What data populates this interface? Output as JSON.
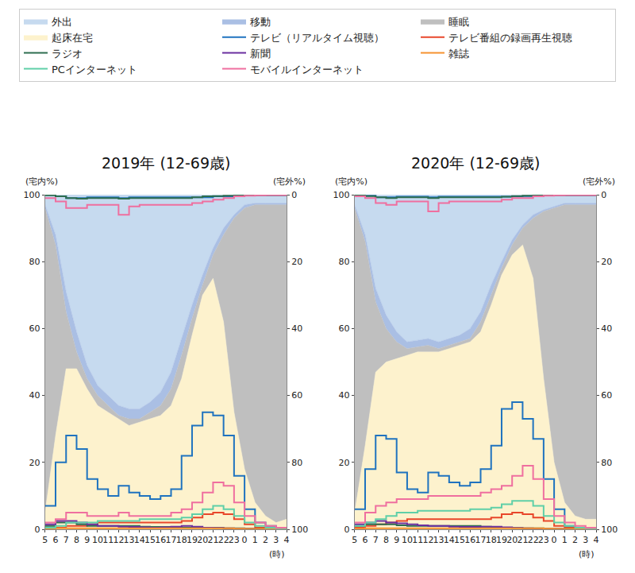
{
  "chart_data": [
    {
      "type": "area",
      "title": "2019年 (12-69歳)",
      "y_label": "(宅内%)",
      "y2_label": "(宅外%)",
      "x_label": "(時)",
      "stacked": true,
      "grid": false,
      "legend": "top",
      "categories": [
        "5",
        "6",
        "7",
        "8",
        "9",
        "10",
        "11",
        "12",
        "13",
        "14",
        "15",
        "16",
        "17",
        "18",
        "19",
        "20",
        "21",
        "22",
        "23",
        "0",
        "1",
        "2",
        "3",
        "4"
      ],
      "ylim": [
        0,
        100
      ],
      "yticks": [
        0,
        20,
        40,
        60,
        80,
        100
      ],
      "y2lim": [
        100,
        0
      ],
      "y2ticks": [
        0,
        20,
        40,
        60,
        80,
        100
      ],
      "series": [
        {
          "name": "外出",
          "type": "area",
          "color": "#c6daef",
          "values": [
            3,
            12,
            29,
            41,
            51,
            57,
            60,
            63,
            64,
            64,
            62,
            59,
            53,
            43,
            33,
            24,
            16,
            10,
            6,
            3,
            2.5,
            2.5,
            2.5,
            2.5
          ]
        },
        {
          "name": "移動",
          "type": "area",
          "color": "#aabfe4",
          "values": [
            1,
            3,
            6,
            6,
            4,
            3,
            3,
            3,
            3,
            3,
            3,
            4,
            5,
            5,
            4,
            3,
            2,
            2,
            1,
            1,
            0.5,
            0.5,
            0.5,
            0.5
          ]
        },
        {
          "name": "睡眠",
          "type": "area",
          "color": "#bfbfbf",
          "values": [
            91,
            57,
            17,
            5,
            3,
            3,
            2,
            1,
            2,
            1,
            2,
            3,
            5,
            7,
            5,
            3,
            7,
            26,
            58,
            78,
            89,
            93,
            95,
            94
          ]
        },
        {
          "name": "起床在宅",
          "type": "area",
          "color": "#fdf2cd",
          "values": [
            5,
            28,
            48,
            48,
            42,
            37,
            35,
            33,
            31,
            32,
            33,
            34,
            37,
            45,
            58,
            70,
            75,
            62,
            35,
            18,
            8,
            4,
            2,
            3
          ]
        },
        {
          "name": "テレビ（リアルタイム視聴）",
          "type": "line",
          "line_style": "step",
          "color": "#1f73bf",
          "values": [
            7,
            20,
            28,
            24,
            15,
            12,
            10,
            13,
            11,
            10,
            9,
            10,
            12,
            22,
            31,
            35,
            34,
            28,
            16,
            6,
            2,
            1,
            0.5,
            0.5
          ]
        },
        {
          "name": "テレビ番組の録画再生視聴",
          "type": "line",
          "line_style": "step",
          "color": "#e8472b",
          "values": [
            0.3,
            0.5,
            1,
            1,
            1.5,
            2,
            2,
            2,
            2,
            2,
            2,
            2,
            2,
            2.5,
            3.5,
            4.5,
            5,
            4.5,
            3,
            1.5,
            0.5,
            0.3,
            0.2,
            0.2
          ]
        },
        {
          "name": "ラジオ",
          "type": "line",
          "line_style": "step",
          "color": "#2e6e50",
          "values": [
            1,
            2,
            2,
            1.5,
            1,
            1,
            1,
            1,
            1,
            0.8,
            0.7,
            0.7,
            0.7,
            0.5,
            0.5,
            0.5,
            0.5,
            0.3,
            0.3,
            0.2,
            0.1,
            0.1,
            0.1,
            0.1
          ]
        },
        {
          "name": "新聞",
          "type": "line",
          "line_style": "step",
          "color": "#6a2fa0",
          "values": [
            1.5,
            2.5,
            2.5,
            2,
            1.5,
            1,
            1,
            0.8,
            0.7,
            0.6,
            0.5,
            0.6,
            0.8,
            1,
            0.8,
            0.5,
            0.4,
            0.3,
            0.2,
            0.1,
            0,
            0,
            0,
            0
          ]
        },
        {
          "name": "雑誌",
          "type": "line",
          "line_style": "step",
          "color": "#f5922f",
          "values": [
            0.2,
            0.3,
            0.3,
            0.3,
            0.3,
            0.3,
            0.3,
            0.3,
            0.3,
            0.3,
            0.3,
            0.3,
            0.3,
            0.3,
            0.3,
            0.3,
            0.3,
            0.3,
            0.2,
            0.1,
            0.1,
            0.1,
            0.1,
            0.1
          ]
        },
        {
          "name": "PCインターネット",
          "type": "line",
          "line_style": "step",
          "color": "#5fcfa8",
          "values": [
            0.5,
            1,
            2,
            2,
            2,
            2.5,
            2.5,
            2.5,
            2.5,
            3,
            3,
            3,
            3,
            3.5,
            4.5,
            6,
            7,
            6,
            4,
            2,
            1,
            0.5,
            0.3,
            0.2
          ]
        },
        {
          "name": "モバイルインターネット",
          "type": "line",
          "line_style": "step",
          "color": "#ef6f9f",
          "values": [
            2,
            3,
            5,
            5,
            4,
            4,
            4,
            5,
            4,
            4,
            4,
            4,
            5,
            6,
            8,
            11,
            14,
            13,
            8,
            4,
            2,
            1,
            0.5,
            0.5
          ]
        },
        {
          "name": "テレビ（リアルタイム視聴）",
          "type": "line",
          "line_style": "step",
          "axis": "y2",
          "color": "#1f73bf",
          "values": [
            0,
            0.5,
            1,
            1,
            0.8,
            0.8,
            0.8,
            1,
            0.8,
            0.8,
            0.8,
            0.8,
            0.8,
            0.8,
            0.8,
            0.8,
            0.5,
            0.5,
            0.3,
            0.2,
            0.1,
            0.1,
            0.1,
            0.1
          ]
        },
        {
          "name": "ラジオ",
          "type": "line",
          "line_style": "step",
          "axis": "y2",
          "color": "#2e6e50",
          "values": [
            0.2,
            0.5,
            1,
            1.2,
            1,
            1,
            1,
            1.2,
            1,
            1,
            1,
            1,
            1,
            1,
            0.8,
            0.5,
            0.4,
            0.3,
            0.2,
            0.1,
            0.1,
            0.1,
            0.1,
            0.1
          ]
        },
        {
          "name": "モバイルインターネット",
          "type": "line",
          "line_style": "step",
          "axis": "y2",
          "color": "#ef6f9f",
          "values": [
            1,
            2,
            4,
            4,
            3,
            3,
            3,
            6,
            3.5,
            3,
            3,
            3,
            3,
            3,
            2.5,
            2,
            1.5,
            1,
            0.5,
            0.3,
            0.2,
            0.1,
            0.1,
            0.1
          ]
        }
      ]
    },
    {
      "type": "area",
      "title": "2020年 (12-69歳)",
      "y_label": "(宅内%)",
      "y2_label": "(宅外%)",
      "x_label": "(時)",
      "stacked": true,
      "grid": false,
      "legend": "top",
      "categories": [
        "5",
        "6",
        "7",
        "8",
        "9",
        "10",
        "11",
        "12",
        "13",
        "14",
        "15",
        "16",
        "17",
        "18",
        "19",
        "20",
        "21",
        "22",
        "23",
        "0",
        "1",
        "2",
        "3",
        "4"
      ],
      "ylim": [
        0,
        100
      ],
      "yticks": [
        0,
        20,
        40,
        60,
        80,
        100
      ],
      "y2lim": [
        100,
        0
      ],
      "y2ticks": [
        0,
        20,
        40,
        60,
        80,
        100
      ],
      "series": [
        {
          "name": "外出",
          "type": "area",
          "color": "#c6daef",
          "values": [
            3,
            12,
            28,
            36,
            41,
            44,
            43.5,
            43,
            44,
            43,
            42,
            40,
            35,
            27,
            20,
            13.5,
            9,
            6,
            4.5,
            3.5,
            2.5,
            2.5,
            2.5,
            2.5
          ]
        },
        {
          "name": "移動",
          "type": "area",
          "color": "#aabfe4",
          "values": [
            1,
            2,
            4,
            4,
            3,
            2,
            2,
            2,
            2,
            2,
            2,
            3,
            3,
            3,
            2,
            1.5,
            1,
            1,
            0.5,
            0.5,
            0.5,
            0.5,
            0.5,
            0.5
          ]
        },
        {
          "name": "睡眠",
          "type": "area",
          "color": "#bfbfbf",
          "values": [
            91,
            61,
            21,
            10,
            5,
            2,
            1.5,
            2,
            1,
            1,
            1,
            1,
            3,
            3,
            2,
            3,
            5,
            18,
            50,
            76,
            89,
            93,
            94,
            94
          ]
        },
        {
          "name": "起床在宅",
          "type": "area",
          "color": "#fdf2cd",
          "values": [
            5,
            25,
            47,
            50,
            51,
            52,
            53,
            53,
            53,
            54,
            55,
            56,
            59,
            67,
            76,
            82,
            85,
            75,
            45,
            20,
            8,
            4,
            3,
            3
          ]
        },
        {
          "name": "テレビ（リアルタイム視聴）",
          "type": "line",
          "line_style": "step",
          "color": "#1f73bf",
          "values": [
            6,
            18,
            28,
            27,
            17,
            12,
            11,
            17,
            16,
            14,
            13,
            14,
            18,
            25,
            36,
            38,
            33,
            27,
            15,
            6,
            1,
            0.5,
            0.5,
            0.5
          ]
        },
        {
          "name": "テレビ番組の録画再生視聴",
          "type": "line",
          "line_style": "step",
          "color": "#e8472b",
          "values": [
            0.5,
            1,
            1.5,
            2,
            2.5,
            3,
            3,
            3,
            3,
            3,
            3,
            3,
            3,
            3.5,
            4.5,
            5,
            4.5,
            3.5,
            2.5,
            1,
            0.5,
            0.3,
            0.2,
            0.2
          ]
        },
        {
          "name": "ラジオ",
          "type": "line",
          "line_style": "step",
          "color": "#2e6e50",
          "values": [
            1,
            1.5,
            1.5,
            1.5,
            1.2,
            1,
            1,
            1,
            1,
            1,
            1,
            1,
            0.8,
            0.6,
            0.5,
            0.4,
            0.3,
            0.3,
            0.2,
            0.1,
            0.1,
            0.1,
            0.1,
            0.1
          ]
        },
        {
          "name": "新聞",
          "type": "line",
          "line_style": "step",
          "color": "#6a2fa0",
          "values": [
            1.5,
            2,
            2.5,
            2,
            1.8,
            1.5,
            1.2,
            1,
            1,
            0.8,
            0.7,
            0.7,
            0.8,
            0.8,
            0.6,
            0.4,
            0.3,
            0.2,
            0.1,
            0.1,
            0,
            0,
            0,
            0
          ]
        },
        {
          "name": "雑誌",
          "type": "line",
          "line_style": "step",
          "color": "#f5922f",
          "values": [
            0.2,
            0.3,
            0.3,
            0.3,
            0.3,
            0.3,
            0.3,
            0.3,
            0.3,
            0.3,
            0.3,
            0.3,
            0.3,
            0.3,
            0.3,
            0.3,
            0.3,
            0.3,
            0.2,
            0.1,
            0.1,
            0.1,
            0.1,
            0.1
          ]
        },
        {
          "name": "PCインターネット",
          "type": "line",
          "line_style": "step",
          "color": "#5fcfa8",
          "values": [
            1,
            2,
            3,
            4,
            5,
            5,
            5.5,
            5.5,
            5.5,
            5.5,
            5.5,
            6,
            6,
            6.5,
            7.5,
            8.5,
            8.5,
            7,
            4,
            2,
            1,
            0.5,
            0.3,
            0.2
          ]
        },
        {
          "name": "モバイルインターネット",
          "type": "line",
          "line_style": "step",
          "color": "#ef6f9f",
          "values": [
            2,
            5,
            7,
            8,
            9,
            9,
            9,
            10,
            10,
            10,
            10,
            10,
            11,
            12,
            13,
            16,
            19,
            15,
            9,
            4,
            2,
            1,
            0.5,
            0.5
          ]
        },
        {
          "name": "テレビ（リアルタイム視聴）",
          "type": "line",
          "line_style": "step",
          "axis": "y2",
          "color": "#1f73bf",
          "values": [
            0,
            0.3,
            0.8,
            0.8,
            0.6,
            0.6,
            0.6,
            0.8,
            0.6,
            0.6,
            0.6,
            0.6,
            0.6,
            0.6,
            0.6,
            0.5,
            0.4,
            0.3,
            0.2,
            0.1,
            0.1,
            0.1,
            0.1,
            0.1
          ]
        },
        {
          "name": "ラジオ",
          "type": "line",
          "line_style": "step",
          "axis": "y2",
          "color": "#2e6e50",
          "values": [
            0.2,
            0.4,
            0.8,
            1,
            0.8,
            0.8,
            0.8,
            1,
            0.8,
            0.8,
            0.8,
            0.8,
            0.8,
            0.8,
            0.6,
            0.4,
            0.3,
            0.2,
            0.2,
            0.1,
            0.1,
            0.1,
            0.1,
            0.1
          ]
        },
        {
          "name": "モバイルインターネット",
          "type": "line",
          "line_style": "step",
          "axis": "y2",
          "color": "#ef6f9f",
          "values": [
            0.5,
            1,
            2.5,
            3,
            2,
            2,
            2,
            5,
            2.5,
            2,
            2,
            2,
            2,
            2,
            1.5,
            1,
            1,
            0.5,
            0.3,
            0.2,
            0.1,
            0.1,
            0.1,
            0.1
          ]
        }
      ]
    }
  ]
}
